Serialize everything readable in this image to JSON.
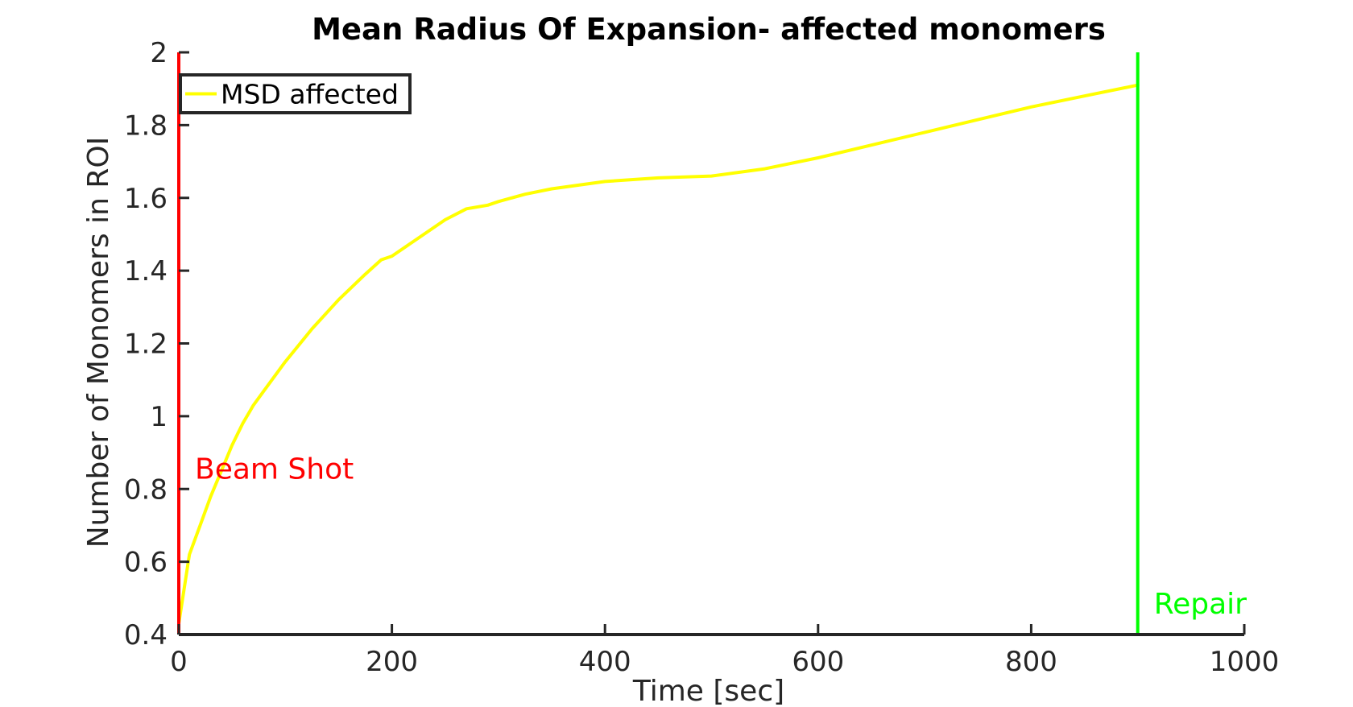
{
  "chart_data": {
    "type": "line",
    "title": "Mean Radius Of Expansion- affected monomers",
    "xlabel": "Time [sec]",
    "ylabel": "Number of Monomers in ROI",
    "xlim": [
      0,
      1000
    ],
    "ylim": [
      0.4,
      2
    ],
    "xticks": [
      0,
      200,
      400,
      600,
      800,
      1000
    ],
    "xtick_labels": [
      "0",
      "200",
      "400",
      "600",
      "800",
      "1000"
    ],
    "yticks": [
      0.4,
      0.6,
      0.8,
      1,
      1.2,
      1.4,
      1.6,
      1.8,
      2
    ],
    "ytick_labels": [
      "0.4",
      "0.6",
      "0.8",
      "1",
      "1.2",
      "1.4",
      "1.6",
      "1.8",
      "2"
    ],
    "grid": false,
    "legend": {
      "position": "top-left",
      "entries": [
        "MSD affected"
      ]
    },
    "series": [
      {
        "name": "MSD affected",
        "color": "#ffff00",
        "x": [
          0,
          10,
          20,
          30,
          40,
          50,
          60,
          70,
          80,
          100,
          125,
          150,
          175,
          190,
          200,
          225,
          250,
          270,
          290,
          300,
          325,
          350,
          400,
          450,
          500,
          550,
          600,
          650,
          700,
          750,
          800,
          850,
          900
        ],
        "y": [
          0.43,
          0.62,
          0.7,
          0.78,
          0.85,
          0.92,
          0.98,
          1.03,
          1.07,
          1.15,
          1.24,
          1.32,
          1.39,
          1.43,
          1.44,
          1.49,
          1.54,
          1.57,
          1.58,
          1.59,
          1.61,
          1.625,
          1.645,
          1.655,
          1.66,
          1.68,
          1.71,
          1.745,
          1.78,
          1.815,
          1.85,
          1.88,
          1.91
        ]
      }
    ],
    "vertical_markers": [
      {
        "x": 0,
        "label": "Beam Shot",
        "color": "#ff0000",
        "label_y": 0.85
      },
      {
        "x": 900,
        "label": "Repair",
        "color": "#00ff00",
        "label_y": 0.48
      }
    ]
  }
}
